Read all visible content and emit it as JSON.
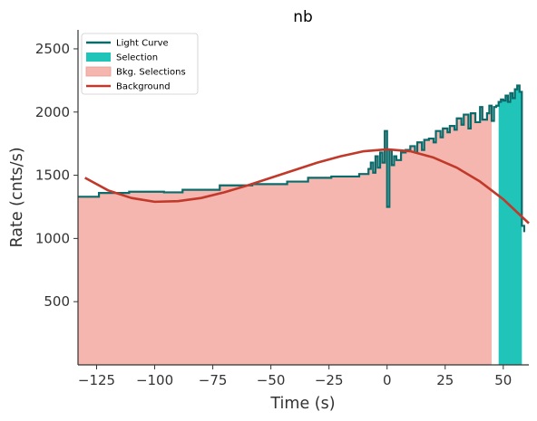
{
  "colors": {
    "light_curve": "#0b6b6b",
    "selection": "#20c4b8",
    "bkg_selection": "#f4b6ae",
    "background_fit": "#c0392b",
    "axis": "#333333"
  },
  "chart_data": {
    "type": "line",
    "title": "nb",
    "xlabel": "Time (s)",
    "ylabel": "Rate (cnts/s)",
    "xlim": [
      -133,
      61
    ],
    "ylim": [
      0,
      2650
    ],
    "xticks": [
      -125,
      -100,
      -75,
      -50,
      -25,
      0,
      25,
      50
    ],
    "xtick_labels": [
      "−125",
      "−100",
      "−75",
      "−50",
      "−25",
      "0",
      "25",
      "50"
    ],
    "yticks": [
      500,
      1000,
      1500,
      2000,
      2500
    ],
    "ytick_labels": [
      "500",
      "1000",
      "1500",
      "2000",
      "2500"
    ],
    "grid": false,
    "legend_position": "top-left",
    "legend": [
      {
        "label": "Light Curve",
        "kind": "line",
        "color": "#0b6b6b"
      },
      {
        "label": "Selection",
        "kind": "patch",
        "color": "#20c4b8"
      },
      {
        "label": "Bkg. Selections",
        "kind": "patch",
        "color": "#f4b6ae"
      },
      {
        "label": "Background",
        "kind": "line",
        "color": "#c0392b"
      }
    ],
    "light_curve": {
      "name": "Light Curve",
      "x": [
        -133,
        -124,
        -124,
        -111,
        -111,
        -96,
        -96,
        -88,
        -88,
        -72,
        -72,
        -58,
        -58,
        -43,
        -43,
        -34,
        -34,
        -24,
        -24,
        -12,
        -12,
        -8,
        -8,
        -7,
        -7,
        -6,
        -6,
        -5,
        -5,
        -4,
        -4,
        -3,
        -3,
        -2,
        -2,
        -1,
        -1,
        0,
        0,
        1,
        1,
        2,
        2,
        3,
        3,
        4,
        4,
        6,
        6,
        8,
        8,
        10,
        10,
        12,
        12,
        13,
        13,
        15,
        15,
        16,
        16,
        18,
        18,
        20,
        20,
        21,
        21,
        23,
        23,
        24,
        24,
        26,
        26,
        27,
        27,
        29,
        29,
        30,
        30,
        32,
        32,
        33,
        33,
        35,
        35,
        36,
        36,
        38,
        38,
        40,
        40,
        41,
        41,
        43,
        43,
        44,
        44,
        45,
        45,
        46,
        46,
        47,
        47,
        48,
        48,
        49,
        49,
        50,
        50,
        51,
        51,
        52,
        52,
        53,
        53,
        54,
        54,
        55,
        55,
        56,
        56,
        57,
        57,
        58,
        58,
        59,
        59
      ],
      "y": [
        1330,
        1330,
        1360,
        1360,
        1370,
        1370,
        1365,
        1365,
        1385,
        1385,
        1420,
        1420,
        1430,
        1430,
        1450,
        1450,
        1480,
        1480,
        1490,
        1490,
        1510,
        1510,
        1550,
        1550,
        1600,
        1600,
        1520,
        1520,
        1650,
        1650,
        1560,
        1560,
        1680,
        1680,
        1600,
        1600,
        1850,
        1850,
        1250,
        1250,
        1700,
        1700,
        1580,
        1580,
        1650,
        1650,
        1620,
        1620,
        1680,
        1680,
        1700,
        1700,
        1730,
        1730,
        1680,
        1680,
        1760,
        1760,
        1700,
        1700,
        1780,
        1780,
        1790,
        1790,
        1760,
        1760,
        1850,
        1850,
        1800,
        1800,
        1870,
        1870,
        1840,
        1840,
        1890,
        1890,
        1860,
        1860,
        1950,
        1950,
        1900,
        1900,
        1980,
        1980,
        1870,
        1870,
        1990,
        1990,
        1920,
        1920,
        2040,
        2040,
        1940,
        1940,
        1990,
        1990,
        2050,
        2050,
        1930,
        1930,
        2040,
        2040,
        2050,
        2050,
        2080,
        2080,
        2100,
        2100,
        2090,
        2090,
        2130,
        2130,
        2080,
        2080,
        2150,
        2150,
        2110,
        2110,
        2180,
        2180,
        2210,
        2210,
        2160,
        2160,
        1100,
        1100,
        1050
      ]
    },
    "bkg_selection_region": {
      "x_start": -133,
      "x_end": 45
    },
    "selection_region": {
      "x_start": 48,
      "x_end": 58
    },
    "background": {
      "name": "Background",
      "x": [
        -130,
        -120,
        -110,
        -100,
        -90,
        -80,
        -70,
        -60,
        -50,
        -40,
        -30,
        -20,
        -10,
        0,
        10,
        20,
        30,
        40,
        50,
        61
      ],
      "y": [
        1480,
        1380,
        1320,
        1290,
        1295,
        1320,
        1365,
        1420,
        1480,
        1540,
        1600,
        1650,
        1690,
        1705,
        1690,
        1640,
        1560,
        1450,
        1310,
        1120
      ]
    }
  }
}
